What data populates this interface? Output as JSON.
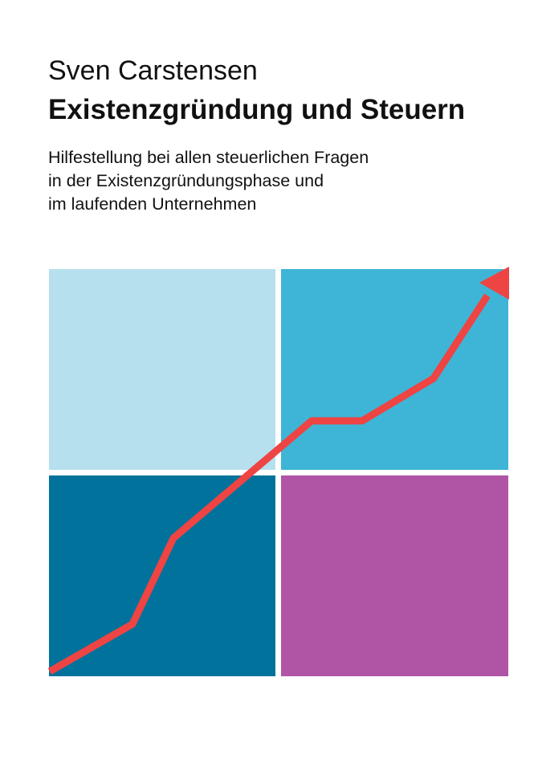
{
  "cover": {
    "author": "Sven Carstensen",
    "title": "Existenzgründung und Steuern",
    "subtitle_lines": [
      "Hilfestellung bei allen steuerlichen Fragen",
      "in der Existenzgründungsphase und",
      "im laufenden Unternehmen"
    ]
  },
  "graphic": {
    "colors": {
      "top_left": "#b6e0ee",
      "top_right": "#3eb5d6",
      "bottom_left": "#00729c",
      "bottom_right": "#b055a5",
      "arrow": "#ee4443"
    },
    "arrow_icon": "rising-trend-arrow-icon"
  }
}
